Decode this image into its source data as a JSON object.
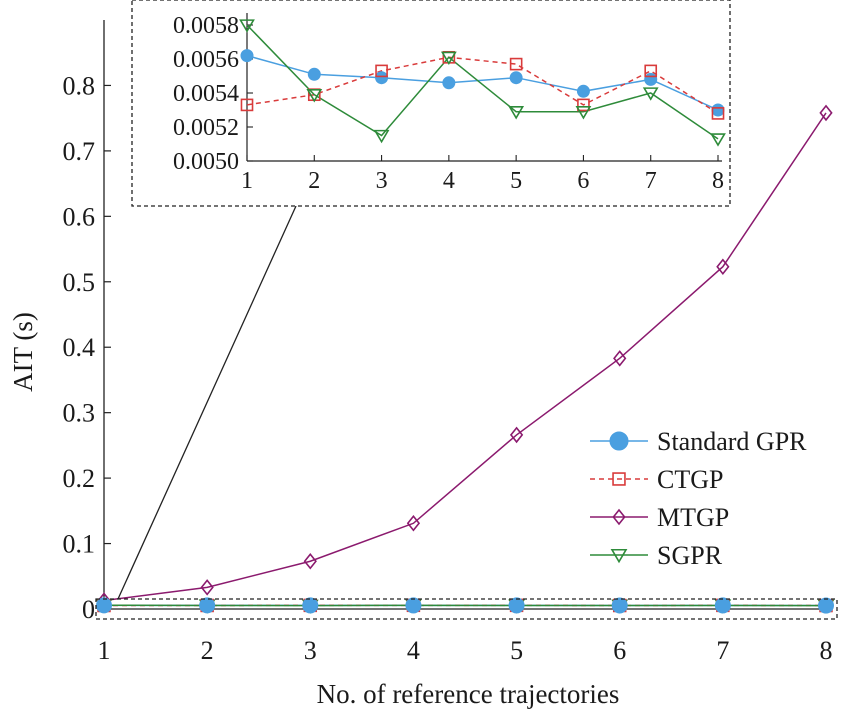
{
  "chart_data": [
    {
      "type": "line",
      "title": "",
      "xlabel": "No. of reference trajectories",
      "ylabel": "AIT (s)",
      "x": [
        1,
        2,
        3,
        4,
        5,
        6,
        7,
        8
      ],
      "xlim": [
        1,
        8
      ],
      "ylim": [
        0,
        0.9
      ],
      "xticks": [
        "1",
        "2",
        "3",
        "4",
        "5",
        "6",
        "7",
        "8"
      ],
      "yticks": [
        "0",
        "0.1",
        "0.2",
        "0.3",
        "0.4",
        "0.5",
        "0.6",
        "0.7",
        "0.8"
      ],
      "grid": false,
      "legend_position": "bottom-right",
      "series": [
        {
          "name": "Standard GPR",
          "color": "#4a9fe0",
          "marker": "circle",
          "line_style": "solid",
          "values": [
            0.00562,
            0.00551,
            0.00549,
            0.00546,
            0.00549,
            0.00541,
            0.00548,
            0.0053
          ]
        },
        {
          "name": "CTGP",
          "color": "#d93b3b",
          "marker": "square",
          "line_style": "dashed",
          "values": [
            0.00533,
            0.00539,
            0.00553,
            0.00561,
            0.00557,
            0.00533,
            0.00553,
            0.00528
          ]
        },
        {
          "name": "MTGP",
          "color": "#8b1a6e",
          "marker": "diamond",
          "line_style": "solid",
          "values": [
            0.013,
            0.033,
            0.073,
            0.131,
            0.266,
            0.383,
            0.523,
            0.758
          ]
        },
        {
          "name": "SGPR",
          "color": "#2e8b3a",
          "marker": "triangle-down",
          "line_style": "solid",
          "values": [
            0.0058,
            0.00539,
            0.00515,
            0.00561,
            0.00529,
            0.00529,
            0.0054,
            0.00513
          ]
        }
      ]
    },
    {
      "type": "line",
      "title": "",
      "xlabel": "",
      "ylabel": "",
      "x": [
        1,
        2,
        3,
        4,
        5,
        6,
        7,
        8
      ],
      "xlim": [
        1,
        8
      ],
      "ylim": [
        0.005,
        0.0058
      ],
      "xticks": [
        "1",
        "2",
        "3",
        "4",
        "5",
        "6",
        "7",
        "8"
      ],
      "yticks": [
        "0.0050",
        "0.0052",
        "0.0054",
        "0.0056",
        "0.0058"
      ],
      "grid": false,
      "series_from_main": [
        "Standard GPR",
        "CTGP",
        "SGPR"
      ]
    }
  ]
}
